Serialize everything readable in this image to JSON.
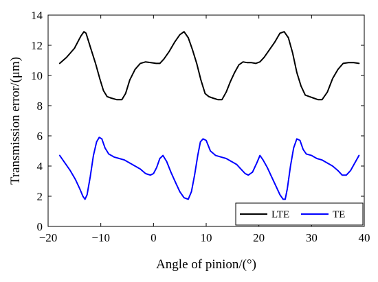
{
  "chart_data": {
    "type": "line",
    "xlabel": "Angle of pinion/(°)",
    "ylabel": "Transmission error/(μm)",
    "xlim": [
      -20,
      40
    ],
    "ylim": [
      0,
      14
    ],
    "xticks": [
      -20,
      -10,
      0,
      10,
      20,
      30,
      40
    ],
    "yticks": [
      0,
      2,
      4,
      6,
      8,
      10,
      12,
      14
    ],
    "xtick_labels": [
      "−20",
      "−10",
      "0",
      "10",
      "20",
      "30",
      "40"
    ],
    "ytick_labels": [
      "0",
      "2",
      "4",
      "6",
      "8",
      "10",
      "12",
      "14"
    ],
    "grid": false,
    "legend_position": "bottom-right",
    "series": [
      {
        "name": "LTE",
        "color": "#000000",
        "x": [
          -17.8,
          -16.5,
          -15.0,
          -13.8,
          -13.2,
          -12.8,
          -12.0,
          -11.0,
          -10.2,
          -9.5,
          -8.8,
          -8.0,
          -7.0,
          -6.0,
          -5.3,
          -4.5,
          -3.5,
          -2.5,
          -1.5,
          -0.5,
          0.5,
          1.2,
          2.0,
          3.0,
          4.0,
          5.0,
          5.8,
          6.6,
          7.4,
          8.2,
          9.0,
          9.8,
          10.5,
          11.3,
          12.2,
          13.0,
          13.8,
          14.6,
          15.4,
          16.2,
          17.0,
          17.8,
          18.6,
          19.4,
          20.2,
          21.0,
          22.0,
          23.0,
          24.0,
          24.8,
          25.6,
          26.4,
          27.2,
          28.0,
          28.8,
          29.6,
          30.4,
          31.2,
          32.0,
          33.0,
          34.0,
          35.0,
          36.0,
          37.0,
          38.0,
          39.0
        ],
        "values": [
          10.8,
          11.2,
          11.8,
          12.6,
          12.9,
          12.8,
          11.9,
          10.8,
          9.8,
          9.0,
          8.6,
          8.5,
          8.4,
          8.4,
          8.8,
          9.7,
          10.4,
          10.8,
          10.9,
          10.85,
          10.8,
          10.8,
          11.1,
          11.6,
          12.2,
          12.7,
          12.9,
          12.5,
          11.7,
          10.8,
          9.7,
          8.8,
          8.6,
          8.5,
          8.4,
          8.4,
          8.9,
          9.6,
          10.2,
          10.7,
          10.9,
          10.85,
          10.85,
          10.8,
          10.9,
          11.2,
          11.7,
          12.2,
          12.8,
          12.9,
          12.5,
          11.5,
          10.2,
          9.3,
          8.7,
          8.6,
          8.5,
          8.4,
          8.4,
          8.9,
          9.8,
          10.4,
          10.8,
          10.85,
          10.85,
          10.8
        ]
      },
      {
        "name": "TE",
        "color": "#0000ff",
        "x": [
          -17.8,
          -16.8,
          -15.8,
          -14.8,
          -14.0,
          -13.4,
          -13.0,
          -12.6,
          -12.0,
          -11.4,
          -10.8,
          -10.3,
          -9.8,
          -9.2,
          -8.5,
          -7.5,
          -6.5,
          -5.5,
          -4.5,
          -3.5,
          -2.5,
          -1.5,
          -0.6,
          0.0,
          0.6,
          1.2,
          1.8,
          2.5,
          3.3,
          4.2,
          5.0,
          5.8,
          6.6,
          7.2,
          7.8,
          8.4,
          8.9,
          9.4,
          10.0,
          10.8,
          11.8,
          12.8,
          13.8,
          14.8,
          15.8,
          16.6,
          17.4,
          18.0,
          18.8,
          19.6,
          20.2,
          20.8,
          21.6,
          22.4,
          23.2,
          24.0,
          24.6,
          25.0,
          25.4,
          26.0,
          26.6,
          27.2,
          27.8,
          28.4,
          29.0,
          30.0,
          31.0,
          32.0,
          33.0,
          34.0,
          35.0,
          35.8,
          36.6,
          37.4,
          38.2,
          39.0
        ],
        "values": [
          4.7,
          4.2,
          3.7,
          3.1,
          2.5,
          2.0,
          1.8,
          2.1,
          3.3,
          4.7,
          5.6,
          5.9,
          5.8,
          5.2,
          4.8,
          4.6,
          4.5,
          4.4,
          4.2,
          4.0,
          3.8,
          3.5,
          3.4,
          3.5,
          3.9,
          4.5,
          4.7,
          4.3,
          3.6,
          2.9,
          2.3,
          1.9,
          1.8,
          2.3,
          3.4,
          4.7,
          5.6,
          5.8,
          5.7,
          5.0,
          4.7,
          4.6,
          4.5,
          4.3,
          4.1,
          3.8,
          3.5,
          3.4,
          3.6,
          4.2,
          4.7,
          4.4,
          3.9,
          3.3,
          2.7,
          2.1,
          1.8,
          1.8,
          2.5,
          4.0,
          5.2,
          5.8,
          5.7,
          5.1,
          4.8,
          4.7,
          4.5,
          4.4,
          4.2,
          4.0,
          3.7,
          3.4,
          3.4,
          3.7,
          4.2,
          4.7
        ]
      }
    ]
  }
}
